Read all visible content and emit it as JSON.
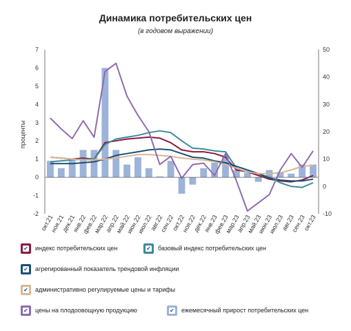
{
  "title": "Динамика потребительских цен",
  "subtitle": "(в годовом выражении)",
  "chart_data": {
    "type": "line",
    "categories": [
      "окт.21",
      "ноя.21",
      "дек.21",
      "янв.22",
      "фев.22",
      "мар.22",
      "апр.22",
      "май.22",
      "июн.22",
      "июл.22",
      "авг.22",
      "сен.22",
      "окт.22",
      "ноя.22",
      "дек.22",
      "янв.23",
      "фев.23",
      "мар.23",
      "апр.23",
      "май.23",
      "июн.23",
      "июл.23",
      "авг.23",
      "сен.23",
      "окт.23"
    ],
    "ylabel": "проценты",
    "ylim": [
      -2,
      7
    ],
    "yticks": [
      -2,
      -1,
      0,
      1,
      2,
      3,
      4,
      5,
      6,
      7
    ],
    "y2lim": [
      -10,
      50
    ],
    "y2ticks": [
      -10,
      0,
      10,
      20,
      30,
      40,
      50
    ],
    "grid": false,
    "legend_position": "bottom",
    "bars": {
      "name": "ежемесячный прирост потребительских цен",
      "axis": "left",
      "color": "#9db3d9",
      "values": [
        0.9,
        0.5,
        0.9,
        1.5,
        1.5,
        6.0,
        1.5,
        0.7,
        1.1,
        0.5,
        0.05,
        0.9,
        -0.9,
        -0.4,
        0.5,
        0.8,
        1.2,
        0.4,
        0.25,
        -0.25,
        0.4,
        0.3,
        0.2,
        0.7,
        0.7
      ]
    },
    "series": [
      {
        "name": "индекс потребительских цен",
        "axis": "left",
        "color": "#8b1a3d",
        "values": [
          1.1,
          1.05,
          1.0,
          1.05,
          1.0,
          1.9,
          2.0,
          2.1,
          2.15,
          2.2,
          2.15,
          1.9,
          1.5,
          1.4,
          1.4,
          1.3,
          1.1,
          0.4,
          0.3,
          0.1,
          -0.1,
          -0.2,
          -0.25,
          -0.15,
          0.1
        ]
      },
      {
        "name": "базовый индекс потребительских цен",
        "axis": "left",
        "color": "#3e8a9a",
        "values": [
          0.85,
          0.9,
          0.95,
          1.0,
          1.0,
          1.8,
          2.1,
          2.2,
          2.3,
          2.45,
          2.55,
          2.45,
          2.0,
          1.6,
          1.55,
          1.45,
          1.4,
          0.5,
          0.3,
          0.2,
          0.0,
          -0.3,
          -0.5,
          -0.55,
          -0.3
        ]
      },
      {
        "name": "агрегированный показатель трендовой инфляции",
        "axis": "left",
        "color": "#1c4f7a",
        "values": [
          0.75,
          0.75,
          0.75,
          0.8,
          0.85,
          1.0,
          1.2,
          1.3,
          1.4,
          1.5,
          1.55,
          1.5,
          1.3,
          1.1,
          1.05,
          0.9,
          0.8,
          0.6,
          0.4,
          0.2,
          -0.05,
          -0.15,
          -0.2,
          -0.2,
          -0.1
        ]
      },
      {
        "name": "административно регулируемые цены и тарифы",
        "axis": "left",
        "color": "#d8b896",
        "values": [
          1.1,
          1.05,
          1.0,
          0.95,
          0.95,
          1.0,
          1.05,
          1.15,
          1.25,
          1.25,
          1.2,
          1.15,
          1.05,
          1.0,
          0.95,
          0.85,
          0.7,
          0.5,
          0.3,
          0.2,
          0.2,
          0.25,
          0.4,
          0.6,
          0.65
        ]
      },
      {
        "name": "цены на плодоовощную продукцию",
        "axis": "right",
        "color": "#8e6bb0",
        "values": [
          25,
          21,
          17.5,
          24,
          18,
          42,
          45,
          33,
          26,
          20,
          8,
          11,
          3,
          8,
          8.5,
          4,
          12,
          2,
          -9,
          -6,
          -3,
          6,
          12,
          7,
          13
        ]
      }
    ]
  },
  "legend": [
    {
      "label": "индекс потребительских цен",
      "color": "#8b1a3d"
    },
    {
      "label": "базовый индекс потребительских цен",
      "color": "#3e8a9a"
    },
    {
      "label": "агрегированный показатель трендовой инфляции",
      "color": "#1c4f7a"
    },
    {
      "label": "административно регулируемые цены и тарифы",
      "color": "#d8b896"
    },
    {
      "label": "цены на плодоовощную продукцию",
      "color": "#8e6bb0"
    },
    {
      "label": "ежемесячный прирост потребительских цен",
      "color": "#9db3d9"
    }
  ],
  "checkmark": "✔"
}
